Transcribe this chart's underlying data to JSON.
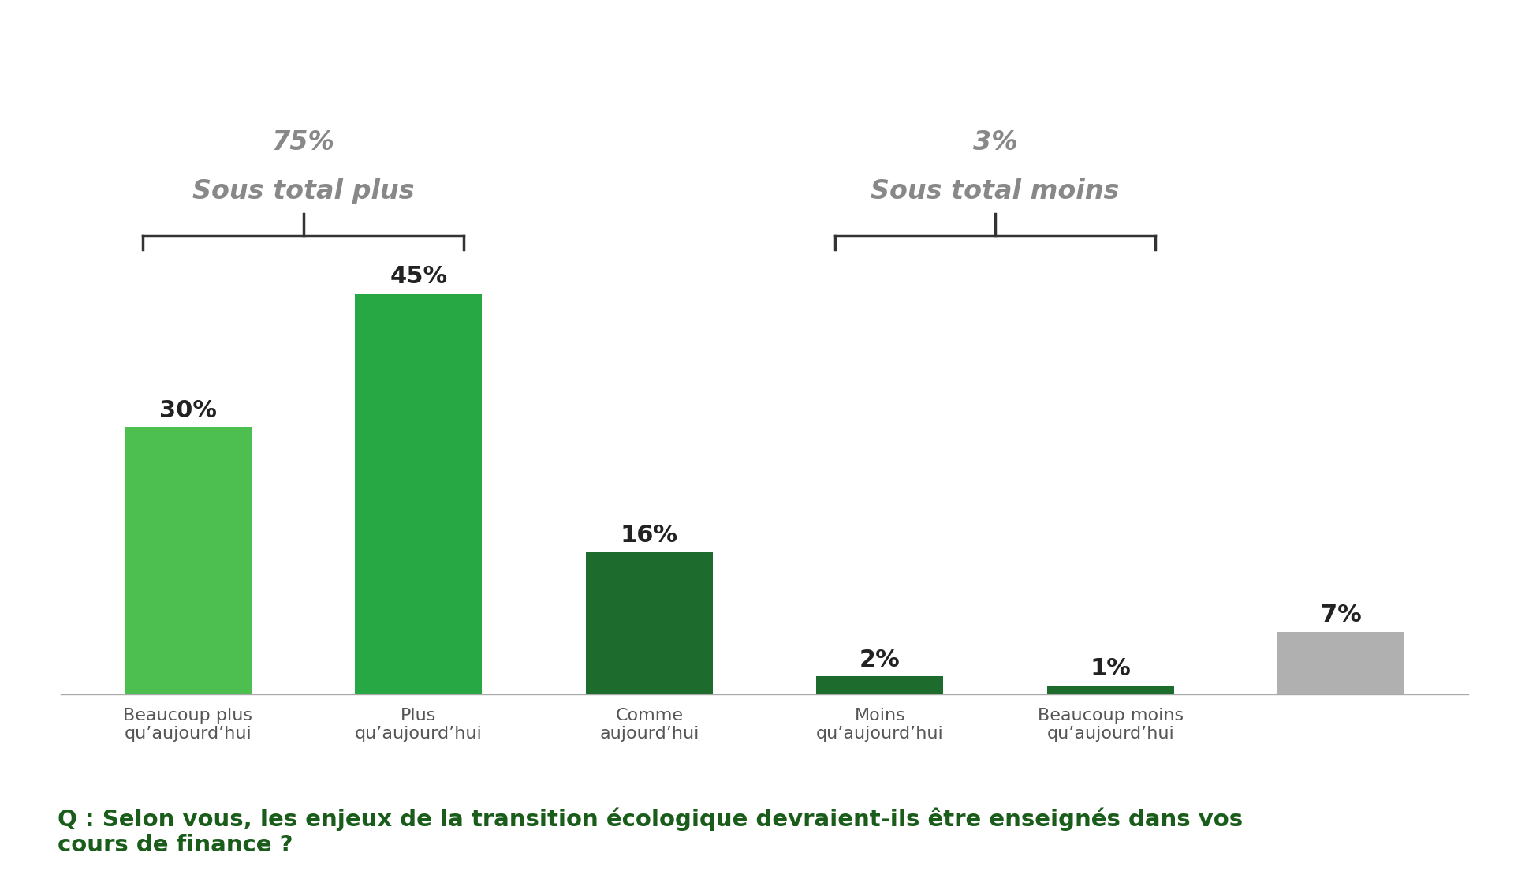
{
  "categories": [
    "Beaucoup plus\nqu’aujourd’hui",
    "Plus\nqu’aujourd’hui",
    "Comme\naujourd’hui",
    "Moins\nqu’aujourd’hui",
    "Beaucoup moins\nqu’aujourd’hui",
    ""
  ],
  "values": [
    30,
    45,
    16,
    2,
    1,
    7
  ],
  "bar_colors": [
    "#4cbf50",
    "#28a745",
    "#1e6b2e",
    "#1e6b2e",
    "#1e6b2e",
    "#b0b0b0"
  ],
  "value_labels": [
    "30%",
    "45%",
    "16%",
    "2%",
    "1%",
    "7%"
  ],
  "sous_total_plus_label": "Sous total plus",
  "sous_total_plus_pct": "75%",
  "sous_total_moins_label": "Sous total moins",
  "sous_total_moins_pct": "3%",
  "question": "Q : Selon vous, les enjeux de la transition écologique devraient-ils être enseignés dans vos\ncours de finance ?",
  "ylim": [
    0,
    50
  ],
  "background_color": "#ffffff",
  "bar_width": 0.55,
  "header_color": "#888888",
  "text_color": "#222222",
  "bracket_color": "#333333",
  "question_color": "#1a5c1a"
}
